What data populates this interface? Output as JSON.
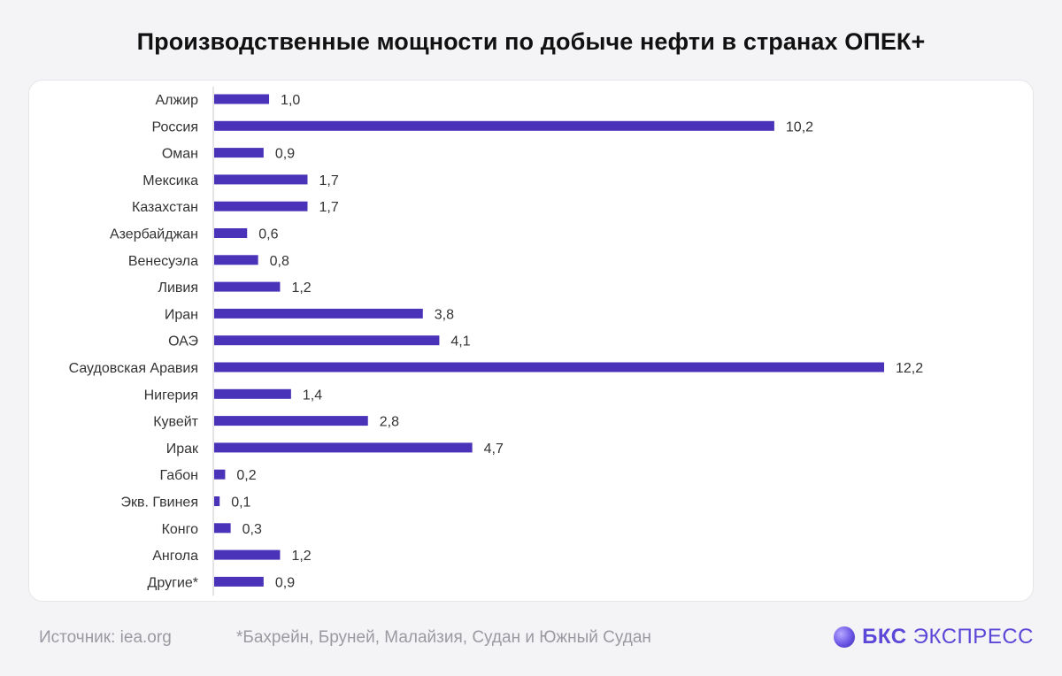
{
  "title": "Производственные мощности по добыче нефти в странах ОПЕК+",
  "footer": {
    "source": "Источник: iea.org",
    "note": "*Бахрейн, Бруней, Малайзия, Судан и Южный Судан"
  },
  "brand": {
    "bold": "БКС",
    "rest": "ЭКСПРЕСС"
  },
  "colors": {
    "bar": "#4a33b8",
    "label": "#333333"
  },
  "chart_data": {
    "type": "bar",
    "orientation": "horizontal",
    "categories": [
      "Алжир",
      "Россия",
      "Оман",
      "Мексика",
      "Казахстан",
      "Азербайджан",
      "Венесуэла",
      "Ливия",
      "Иран",
      "ОАЭ",
      "Саудовская Аравия",
      "Нигерия",
      "Кувейт",
      "Ирак",
      "Габон",
      "Экв. Гвинея",
      "Конго",
      "Ангола",
      "Другие*"
    ],
    "values": [
      1.0,
      10.2,
      0.9,
      1.7,
      1.7,
      0.6,
      0.8,
      1.2,
      3.8,
      4.1,
      12.2,
      1.4,
      2.8,
      4.7,
      0.2,
      0.1,
      0.3,
      1.2,
      0.9
    ],
    "value_labels": [
      "1,0",
      "10,2",
      "0,9",
      "1,7",
      "1,7",
      "0,6",
      "0,8",
      "1,2",
      "3,8",
      "4,1",
      "12,2",
      "1,4",
      "2,8",
      "4,7",
      "0,2",
      "0,1",
      "0,3",
      "1,2",
      "0,9"
    ],
    "xlim": [
      0,
      12.2
    ],
    "grid": false,
    "legend": "none"
  }
}
